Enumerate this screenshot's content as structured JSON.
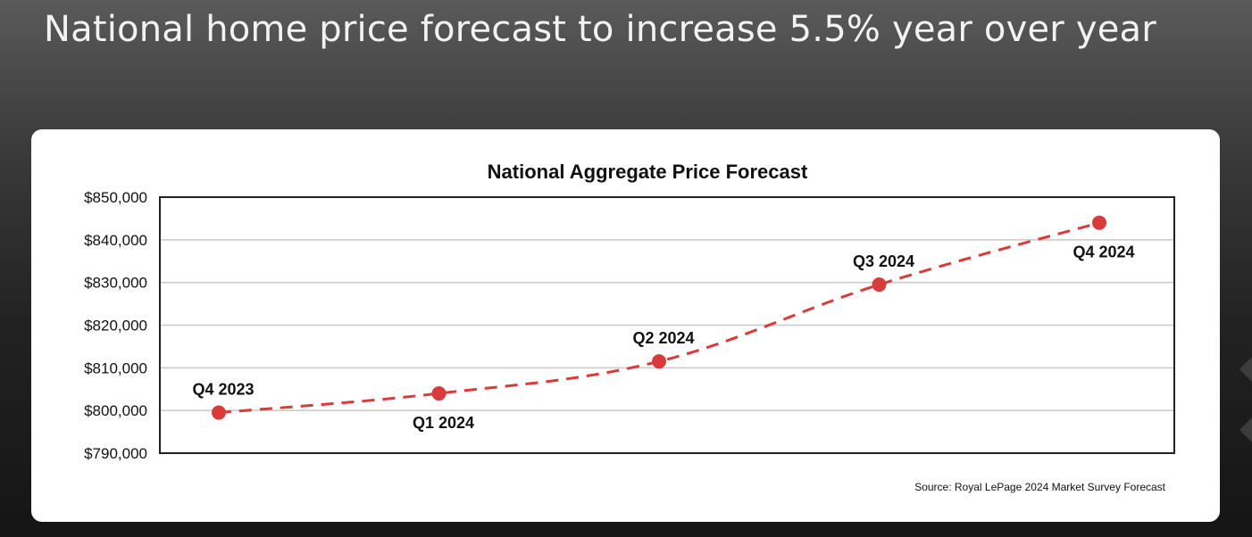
{
  "slide": {
    "title": "National home price forecast to increase 5.5% year over year"
  },
  "chart_data": {
    "type": "line",
    "title": "National Aggregate Price Forecast",
    "categories": [
      "Q4 2023",
      "Q1 2024",
      "Q2 2024",
      "Q3 2024",
      "Q4 2024"
    ],
    "series": [
      {
        "values": [
          799500,
          804000,
          811500,
          829500,
          844000
        ],
        "color": "#d93b3b",
        "line_style": "dashed",
        "marker": "circle"
      }
    ],
    "point_label_position": [
      "above",
      "below",
      "above",
      "above",
      "below"
    ],
    "ylim": [
      790000,
      850000
    ],
    "y_tick_step": 10000,
    "y_tick_labels": [
      "$790,000",
      "$800,000",
      "$810,000",
      "$820,000",
      "$830,000",
      "$840,000",
      "$850,000"
    ],
    "grid": true,
    "legend": "none",
    "xlabel": "",
    "ylabel": "",
    "source": "Source: Royal LePage 2024 Market Survey Forecast"
  }
}
